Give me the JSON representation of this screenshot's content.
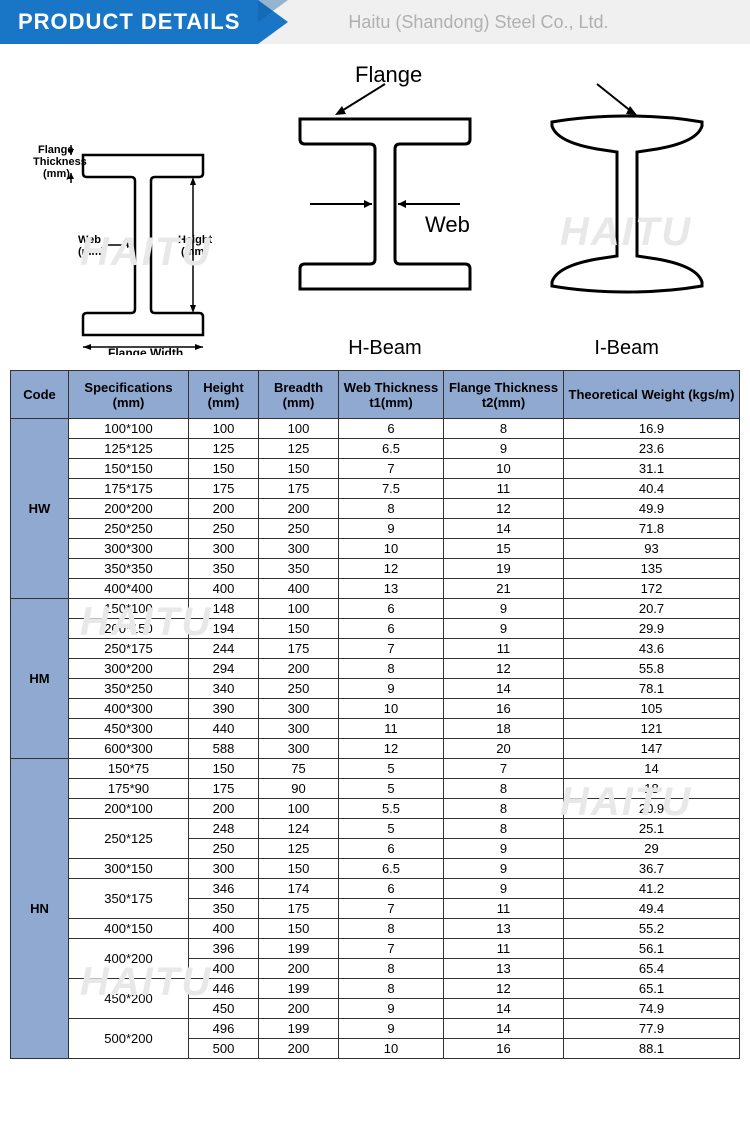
{
  "header": {
    "title": "PRODUCT DETAILS",
    "company": "Haitu (Shandong) Steel Co., Ltd."
  },
  "watermark": "HAITU",
  "diagrams": {
    "flange_label": "Flange",
    "web_label": "Web",
    "dim_labels": {
      "flange_thickness": "Flange\nThickness\n(mm)",
      "web": "Web\n(mm)",
      "height": "Height\n(mm)",
      "flange_width": "Flange Width\n(mm)"
    },
    "h_beam_label": "H-Beam",
    "i_beam_label": "I-Beam"
  },
  "table": {
    "columns": [
      "Code",
      "Specifications (mm)",
      "Height (mm)",
      "Breadth (mm)",
      "Web Thickness t1(mm)",
      "Flange Thickness t2(mm)",
      "Theoretical Weight (kgs/m)"
    ],
    "groups": [
      {
        "code": "HW",
        "rows": [
          {
            "spec": "100*100",
            "h": "100",
            "b": "100",
            "t1": "6",
            "t2": "8",
            "w": "16.9",
            "rs": 1
          },
          {
            "spec": "125*125",
            "h": "125",
            "b": "125",
            "t1": "6.5",
            "t2": "9",
            "w": "23.6",
            "rs": 1
          },
          {
            "spec": "150*150",
            "h": "150",
            "b": "150",
            "t1": "7",
            "t2": "10",
            "w": "31.1",
            "rs": 1
          },
          {
            "spec": "175*175",
            "h": "175",
            "b": "175",
            "t1": "7.5",
            "t2": "11",
            "w": "40.4",
            "rs": 1
          },
          {
            "spec": "200*200",
            "h": "200",
            "b": "200",
            "t1": "8",
            "t2": "12",
            "w": "49.9",
            "rs": 1
          },
          {
            "spec": "250*250",
            "h": "250",
            "b": "250",
            "t1": "9",
            "t2": "14",
            "w": "71.8",
            "rs": 1
          },
          {
            "spec": "300*300",
            "h": "300",
            "b": "300",
            "t1": "10",
            "t2": "15",
            "w": "93",
            "rs": 1
          },
          {
            "spec": "350*350",
            "h": "350",
            "b": "350",
            "t1": "12",
            "t2": "19",
            "w": "135",
            "rs": 1
          },
          {
            "spec": "400*400",
            "h": "400",
            "b": "400",
            "t1": "13",
            "t2": "21",
            "w": "172",
            "rs": 1
          }
        ]
      },
      {
        "code": "HM",
        "rows": [
          {
            "spec": "150*100",
            "h": "148",
            "b": "100",
            "t1": "6",
            "t2": "9",
            "w": "20.7",
            "rs": 1
          },
          {
            "spec": "200*150",
            "h": "194",
            "b": "150",
            "t1": "6",
            "t2": "9",
            "w": "29.9",
            "rs": 1
          },
          {
            "spec": "250*175",
            "h": "244",
            "b": "175",
            "t1": "7",
            "t2": "11",
            "w": "43.6",
            "rs": 1
          },
          {
            "spec": "300*200",
            "h": "294",
            "b": "200",
            "t1": "8",
            "t2": "12",
            "w": "55.8",
            "rs": 1
          },
          {
            "spec": "350*250",
            "h": "340",
            "b": "250",
            "t1": "9",
            "t2": "14",
            "w": "78.1",
            "rs": 1
          },
          {
            "spec": "400*300",
            "h": "390",
            "b": "300",
            "t1": "10",
            "t2": "16",
            "w": "105",
            "rs": 1
          },
          {
            "spec": "450*300",
            "h": "440",
            "b": "300",
            "t1": "11",
            "t2": "18",
            "w": "121",
            "rs": 1
          },
          {
            "spec": "600*300",
            "h": "588",
            "b": "300",
            "t1": "12",
            "t2": "20",
            "w": "147",
            "rs": 1
          }
        ]
      },
      {
        "code": "HN",
        "rows": [
          {
            "spec": "150*75",
            "h": "150",
            "b": "75",
            "t1": "5",
            "t2": "7",
            "w": "14",
            "rs": 1
          },
          {
            "spec": "175*90",
            "h": "175",
            "b": "90",
            "t1": "5",
            "t2": "8",
            "w": "18",
            "rs": 1
          },
          {
            "spec": "200*100",
            "h": "200",
            "b": "100",
            "t1": "5.5",
            "t2": "8",
            "w": "20.9",
            "rs": 1
          },
          {
            "spec": "250*125",
            "h": "248",
            "b": "124",
            "t1": "5",
            "t2": "8",
            "w": "25.1",
            "rs": 2
          },
          {
            "spec": "",
            "h": "250",
            "b": "125",
            "t1": "6",
            "t2": "9",
            "w": "29",
            "rs": 0
          },
          {
            "spec": "300*150",
            "h": "300",
            "b": "150",
            "t1": "6.5",
            "t2": "9",
            "w": "36.7",
            "rs": 1
          },
          {
            "spec": "350*175",
            "h": "346",
            "b": "174",
            "t1": "6",
            "t2": "9",
            "w": "41.2",
            "rs": 2
          },
          {
            "spec": "",
            "h": "350",
            "b": "175",
            "t1": "7",
            "t2": "11",
            "w": "49.4",
            "rs": 0
          },
          {
            "spec": "400*150",
            "h": "400",
            "b": "150",
            "t1": "8",
            "t2": "13",
            "w": "55.2",
            "rs": 1
          },
          {
            "spec": "400*200",
            "h": "396",
            "b": "199",
            "t1": "7",
            "t2": "11",
            "w": "56.1",
            "rs": 2
          },
          {
            "spec": "",
            "h": "400",
            "b": "200",
            "t1": "8",
            "t2": "13",
            "w": "65.4",
            "rs": 0
          },
          {
            "spec": "450*200",
            "h": "446",
            "b": "199",
            "t1": "8",
            "t2": "12",
            "w": "65.1",
            "rs": 2
          },
          {
            "spec": "",
            "h": "450",
            "b": "200",
            "t1": "9",
            "t2": "14",
            "w": "74.9",
            "rs": 0
          },
          {
            "spec": "500*200",
            "h": "496",
            "b": "199",
            "t1": "9",
            "t2": "14",
            "w": "77.9",
            "rs": 2
          },
          {
            "spec": "",
            "h": "500",
            "b": "200",
            "t1": "10",
            "t2": "16",
            "w": "88.1",
            "rs": 0
          }
        ]
      }
    ]
  },
  "colors": {
    "header_blue": "#1976c7",
    "th_bg": "#8fa9d0",
    "border": "#333333"
  }
}
